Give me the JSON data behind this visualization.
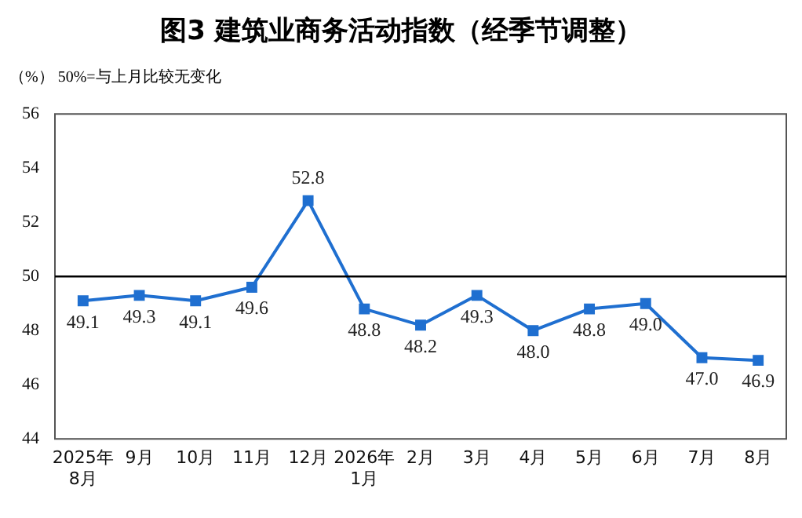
{
  "chart_data": {
    "type": "line",
    "title": "图3  建筑业商务活动指数（经季节调整）",
    "subtitle": "（%） 50%=与上月比较无变化",
    "categories": [
      "2025年8月",
      "9月",
      "10月",
      "11月",
      "12月",
      "2026年1月",
      "2月",
      "3月",
      "4月",
      "5月",
      "6月",
      "7月",
      "8月"
    ],
    "series": [
      {
        "color": "#1f6fd0",
        "values": [
          49.1,
          49.3,
          49.1,
          49.6,
          52.8,
          48.8,
          48.2,
          49.3,
          48.0,
          48.8,
          49.0,
          47.0,
          46.9
        ]
      }
    ],
    "value_labels": [
      "49.1",
      "49.3",
      "49.1",
      "49.6",
      "52.8",
      "48.8",
      "48.2",
      "49.3",
      "48.0",
      "48.8",
      "49.0",
      "47.0",
      "46.9"
    ],
    "ylim": [
      44,
      56
    ],
    "yticks": [
      44,
      46,
      48,
      50,
      52,
      54,
      56
    ],
    "grid": false,
    "legend": false,
    "marker": "square",
    "line_style": "solid",
    "ref_lines": [
      {
        "axis": "y",
        "value": 50,
        "color": "#000000"
      }
    ]
  }
}
